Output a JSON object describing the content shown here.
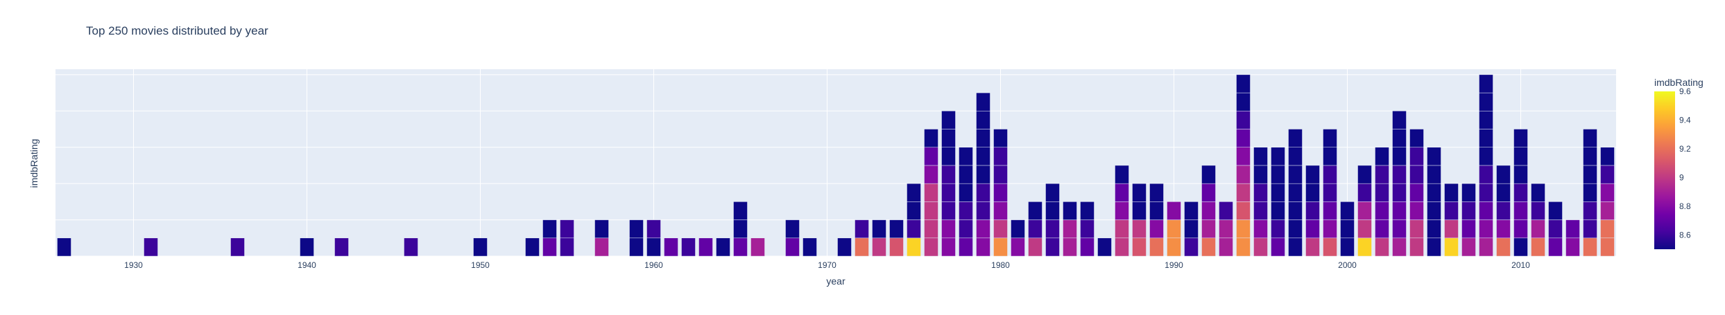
{
  "chart_data": {
    "type": "bar",
    "barmode": "stack",
    "title": "Top 250 movies distributed by year",
    "xlabel": "year",
    "ylabel": "imdbRating",
    "xlim": [
      1925.5,
      2015.5
    ],
    "x_ticks": [
      1930,
      1940,
      1950,
      1960,
      1970,
      1980,
      1990,
      2000,
      2010
    ],
    "y_gridlines": [
      0,
      2,
      4,
      6,
      8,
      10
    ],
    "ylim": [
      0,
      10.3
    ],
    "grid": true,
    "legend": "none",
    "colorbar": {
      "title": "imdbRating",
      "min": 8.5,
      "max": 9.6,
      "ticks": [
        8.6,
        8.8,
        9,
        9.2,
        9.4,
        9.6
      ],
      "position": "right"
    },
    "colorscale": [
      "#0d0887",
      "#46039f",
      "#7201a8",
      "#9c179e",
      "#bd3786",
      "#d8576b",
      "#ed7953",
      "#fb9f3a",
      "#fdca26",
      "#f0f921"
    ],
    "background_color": "#e5ecf6",
    "bars": [
      {
        "year": 1926,
        "ratings": [
          8.5
        ]
      },
      {
        "year": 1931,
        "ratings": [
          8.6
        ]
      },
      {
        "year": 1936,
        "ratings": [
          8.6
        ]
      },
      {
        "year": 1940,
        "ratings": [
          8.5
        ]
      },
      {
        "year": 1942,
        "ratings": [
          8.6
        ]
      },
      {
        "year": 1946,
        "ratings": [
          8.6
        ]
      },
      {
        "year": 1950,
        "ratings": [
          8.5
        ]
      },
      {
        "year": 1953,
        "ratings": [
          8.5
        ]
      },
      {
        "year": 1954,
        "ratings": [
          8.7,
          8.5
        ]
      },
      {
        "year": 1955,
        "ratings": [
          8.6,
          8.6
        ]
      },
      {
        "year": 1957,
        "ratings": [
          8.9,
          8.5
        ]
      },
      {
        "year": 1959,
        "ratings": [
          8.5,
          8.5
        ]
      },
      {
        "year": 1960,
        "ratings": [
          8.5,
          8.6
        ]
      },
      {
        "year": 1961,
        "ratings": [
          8.7
        ]
      },
      {
        "year": 1962,
        "ratings": [
          8.6
        ]
      },
      {
        "year": 1963,
        "ratings": [
          8.7
        ]
      },
      {
        "year": 1964,
        "ratings": [
          8.5
        ]
      },
      {
        "year": 1965,
        "ratings": [
          8.7,
          8.5,
          8.5
        ]
      },
      {
        "year": 1966,
        "ratings": [
          8.9
        ]
      },
      {
        "year": 1968,
        "ratings": [
          8.7,
          8.5
        ]
      },
      {
        "year": 1969,
        "ratings": [
          8.5
        ]
      },
      {
        "year": 1971,
        "ratings": [
          8.5
        ]
      },
      {
        "year": 1972,
        "ratings": [
          9.2,
          8.6
        ]
      },
      {
        "year": 1973,
        "ratings": [
          9.0,
          8.5
        ]
      },
      {
        "year": 1974,
        "ratings": [
          9.1,
          8.5
        ]
      },
      {
        "year": 1975,
        "ratings": [
          9.5,
          8.6,
          8.5,
          8.5
        ]
      },
      {
        "year": 1976,
        "ratings": [
          9.0,
          9.0,
          9.0,
          9.0,
          8.8,
          8.7,
          8.5
        ]
      },
      {
        "year": 1977,
        "ratings": [
          8.8,
          8.8,
          8.6,
          8.6,
          8.6,
          8.5,
          8.5,
          8.5
        ]
      },
      {
        "year": 1978,
        "ratings": [
          8.7,
          8.6,
          8.6,
          8.5,
          8.5,
          8.5
        ]
      },
      {
        "year": 1979,
        "ratings": [
          8.8,
          8.8,
          8.6,
          8.6,
          8.5,
          8.5,
          8.5,
          8.5,
          8.5
        ]
      },
      {
        "year": 1980,
        "ratings": [
          9.3,
          9.0,
          8.8,
          8.7,
          8.6,
          8.6,
          8.5
        ]
      },
      {
        "year": 1981,
        "ratings": [
          8.8,
          8.5
        ]
      },
      {
        "year": 1982,
        "ratings": [
          9.0,
          8.6,
          8.5
        ]
      },
      {
        "year": 1983,
        "ratings": [
          8.6,
          8.6,
          8.5,
          8.5
        ]
      },
      {
        "year": 1984,
        "ratings": [
          8.9,
          8.9,
          8.5
        ]
      },
      {
        "year": 1985,
        "ratings": [
          8.7,
          8.6,
          8.5
        ]
      },
      {
        "year": 1986,
        "ratings": [
          8.5
        ]
      },
      {
        "year": 1987,
        "ratings": [
          9.0,
          9.0,
          8.8,
          8.7,
          8.5
        ]
      },
      {
        "year": 1988,
        "ratings": [
          9.1,
          9.0,
          8.5,
          8.5
        ]
      },
      {
        "year": 1989,
        "ratings": [
          9.2,
          8.8,
          8.5,
          8.5
        ]
      },
      {
        "year": 1990,
        "ratings": [
          9.3,
          9.3,
          8.8
        ]
      },
      {
        "year": 1991,
        "ratings": [
          8.6,
          8.5,
          8.5
        ]
      },
      {
        "year": 1992,
        "ratings": [
          9.2,
          8.9,
          8.8,
          8.7,
          8.5
        ]
      },
      {
        "year": 1993,
        "ratings": [
          8.9,
          8.9,
          8.6
        ]
      },
      {
        "year": 1994,
        "ratings": [
          9.3,
          9.3,
          9.1,
          9.0,
          8.9,
          8.8,
          8.7,
          8.6,
          8.5,
          8.5
        ]
      },
      {
        "year": 1995,
        "ratings": [
          9.0,
          8.8,
          8.6,
          8.6,
          8.5,
          8.5
        ]
      },
      {
        "year": 1996,
        "ratings": [
          8.7,
          8.6,
          8.5,
          8.5,
          8.5,
          8.5
        ]
      },
      {
        "year": 1997,
        "ratings": [
          8.5,
          8.5,
          8.5,
          8.5,
          8.5,
          8.5,
          8.5
        ]
      },
      {
        "year": 1998,
        "ratings": [
          9.0,
          8.7,
          8.6,
          8.5,
          8.5
        ]
      },
      {
        "year": 1999,
        "ratings": [
          9.1,
          8.8,
          8.7,
          8.6,
          8.6,
          8.5,
          8.5
        ]
      },
      {
        "year": 2000,
        "ratings": [
          8.5,
          8.5,
          8.5
        ]
      },
      {
        "year": 2001,
        "ratings": [
          9.5,
          9.0,
          8.9,
          8.6,
          8.5
        ]
      },
      {
        "year": 2002,
        "ratings": [
          9.0,
          8.7,
          8.7,
          8.6,
          8.6,
          8.5
        ]
      },
      {
        "year": 2003,
        "ratings": [
          8.9,
          8.7,
          8.7,
          8.6,
          8.6,
          8.5,
          8.5,
          8.5
        ]
      },
      {
        "year": 2004,
        "ratings": [
          9.0,
          9.0,
          8.8,
          8.7,
          8.6,
          8.6,
          8.5
        ]
      },
      {
        "year": 2005,
        "ratings": [
          8.5,
          8.5,
          8.5,
          8.5,
          8.5,
          8.5
        ]
      },
      {
        "year": 2006,
        "ratings": [
          9.5,
          9.0,
          8.6,
          8.5
        ]
      },
      {
        "year": 2007,
        "ratings": [
          8.9,
          8.7,
          8.6,
          8.5
        ]
      },
      {
        "year": 2008,
        "ratings": [
          8.9,
          8.8,
          8.7,
          8.6,
          8.6,
          8.5,
          8.5,
          8.5,
          8.5,
          8.5
        ]
      },
      {
        "year": 2009,
        "ratings": [
          9.2,
          8.8,
          8.6,
          8.5,
          8.5
        ]
      },
      {
        "year": 2010,
        "ratings": [
          8.5,
          8.7,
          8.7,
          8.6,
          8.5,
          8.5,
          8.5
        ]
      },
      {
        "year": 2011,
        "ratings": [
          9.2,
          8.9,
          8.6,
          8.5
        ]
      },
      {
        "year": 2012,
        "ratings": [
          8.7,
          8.6,
          8.5
        ]
      },
      {
        "year": 2013,
        "ratings": [
          8.8,
          8.7
        ]
      },
      {
        "year": 2014,
        "ratings": [
          9.2,
          8.6,
          8.6,
          8.5,
          8.5,
          8.5,
          8.5
        ]
      },
      {
        "year": 2015,
        "ratings": [
          9.2,
          9.2,
          8.9,
          8.8,
          8.6,
          8.5
        ]
      }
    ]
  }
}
